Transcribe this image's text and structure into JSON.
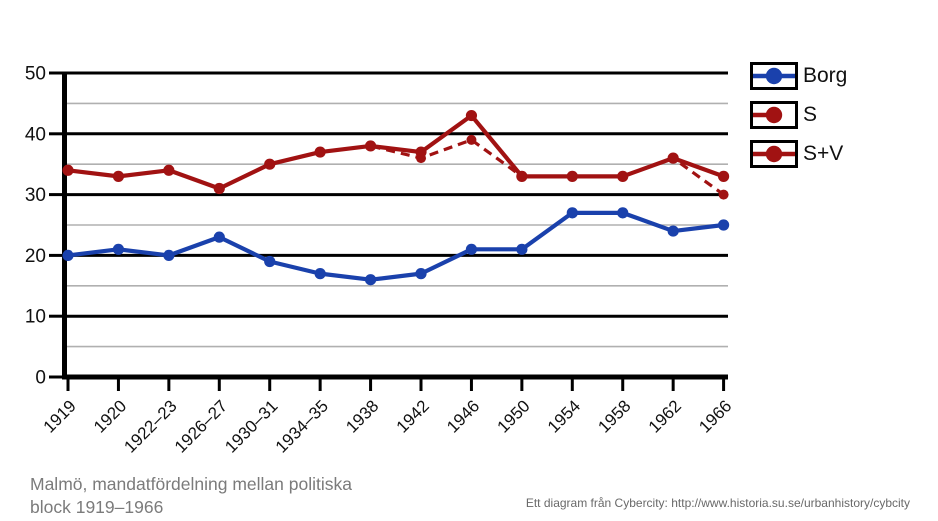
{
  "caption": {
    "line1": "Malmö, mandatfördelning mellan politiska",
    "line2": "block 1919–1966"
  },
  "attribution": "Ett diagram från Cybercity: http://www.historia.su.se/urbanhistory/cybcity",
  "colors": {
    "borg_blue": "#1A41AC",
    "socialist_red": "#A11212",
    "major_grid": "#000000",
    "minor_grid": "#b0b0b0",
    "caption_gray": "#7b7b7b"
  },
  "chart_data": {
    "type": "line",
    "categories": [
      "1919",
      "1920",
      "1922–23",
      "1926–27",
      "1930–31",
      "1934–35",
      "1938",
      "1942",
      "1946",
      "1950",
      "1954",
      "1958",
      "1962",
      "1966"
    ],
    "series": [
      {
        "name": "Borg",
        "color": "#1A41AC",
        "style": "solid",
        "values": [
          20,
          21,
          20,
          23,
          19,
          17,
          16,
          17,
          21,
          21,
          27,
          27,
          24,
          25
        ]
      },
      {
        "name": "S",
        "color": "#A11212",
        "style": "dashed",
        "values": [
          34,
          33,
          34,
          31,
          35,
          37,
          38,
          36,
          39,
          33,
          33,
          33,
          36,
          30
        ]
      },
      {
        "name": "S+V",
        "color": "#A11212",
        "style": "solid",
        "values": [
          34,
          33,
          34,
          31,
          35,
          37,
          38,
          37,
          43,
          33,
          33,
          33,
          36,
          33
        ]
      }
    ],
    "title": "",
    "xlabel": "",
    "ylabel": "",
    "ylim": [
      0,
      50
    ],
    "yticks_major": [
      0,
      10,
      20,
      30,
      40,
      50
    ],
    "yticks_minor": [
      5,
      15,
      25,
      35,
      45
    ],
    "grid": "horizontal",
    "legend_position": "top-right"
  }
}
